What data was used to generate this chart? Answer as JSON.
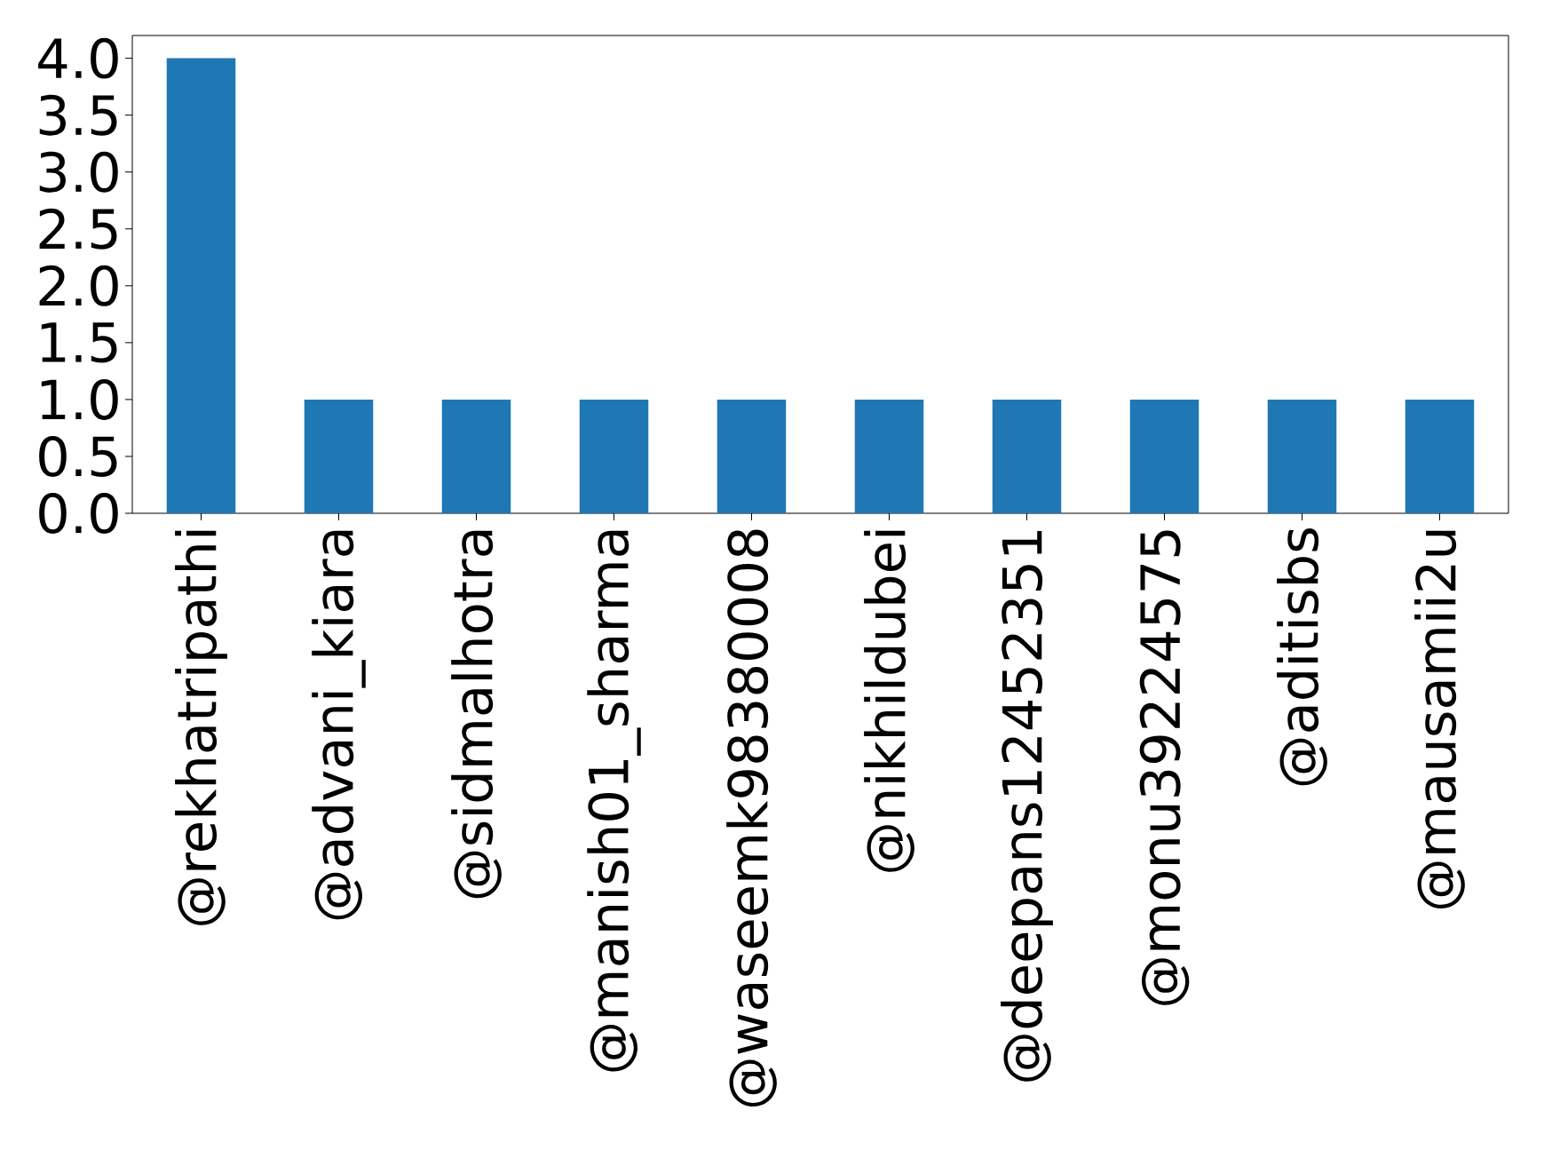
{
  "chart_data": {
    "type": "bar",
    "categories": [
      "@rekhatripathi",
      "@advani_kiara",
      "@sidmalhotra",
      "@manish01_sharma",
      "@waseemk98380008",
      "@nikhildubei",
      "@deepans12452351",
      "@monu39224575",
      "@aditisbs",
      "@mausamii2u"
    ],
    "values": [
      4,
      1,
      1,
      1,
      1,
      1,
      1,
      1,
      1,
      1
    ],
    "color": "#1f77b4",
    "ylim": [
      0,
      4.2
    ],
    "yticks": [
      {
        "value": 0,
        "label": "0.0"
      },
      {
        "value": 0.5,
        "label": "0.5"
      },
      {
        "value": 1,
        "label": "1.0"
      },
      {
        "value": 1.5,
        "label": "1.5"
      },
      {
        "value": 2,
        "label": "2.0"
      },
      {
        "value": 2.5,
        "label": "2.5"
      },
      {
        "value": 3,
        "label": "3.0"
      },
      {
        "value": 3.5,
        "label": "3.5"
      },
      {
        "value": 4,
        "label": "4.0"
      }
    ],
    "grid": false
  }
}
